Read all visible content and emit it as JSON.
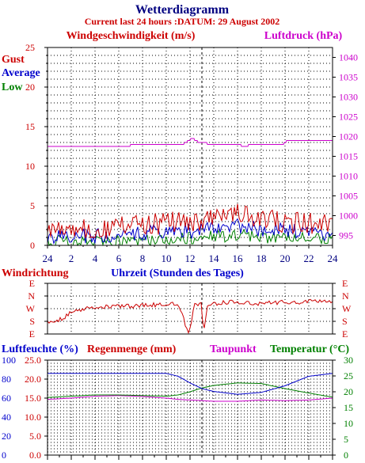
{
  "title": "Wetterdiagramm",
  "subtitle": "Current last 24 hours :DATUM: 29 August 2002",
  "colors": {
    "navy": "#000080",
    "red": "#cc0000",
    "blue": "#0000cc",
    "green": "#008000",
    "magenta": "#cc00cc"
  },
  "chart_data": [
    {
      "type": "line",
      "title": "",
      "ylabel_left": "Windgeschwindigkeit (m/s)",
      "ylabel_right": "Luftdruck (hPa)",
      "xlabel": "Uhrzeit (Stunden des Tages)",
      "x_ticks": [
        "24",
        "2",
        "4",
        "6",
        "8",
        "10",
        "12",
        "14",
        "16",
        "18",
        "20",
        "22",
        "24"
      ],
      "y_left_ticks": [
        "0",
        "5",
        "10",
        "15",
        "20",
        "25"
      ],
      "y_left_range": [
        0,
        25
      ],
      "y_right_ticks": [
        "995",
        "1000",
        "1005",
        "1010",
        "1015",
        "1020",
        "1025",
        "1030",
        "1035",
        "1040"
      ],
      "y_right_range": [
        992.5,
        1042.5
      ],
      "legend": [
        "Gust",
        "Average",
        "Low"
      ],
      "legend_position": "left",
      "grid": true,
      "x": [
        0,
        2,
        4,
        6,
        8,
        10,
        11.5,
        12.2,
        12.8,
        14,
        16,
        16.6,
        17.2,
        18,
        19.8,
        20.2,
        22,
        24
      ],
      "series": [
        {
          "name": "Gust",
          "axis": "left",
          "values": [
            2.0,
            2.3,
            2.0,
            2.3,
            2.5,
            2.8,
            3.3,
            3.0,
            3.2,
            3.6,
            4.0,
            4.1,
            3.8,
            3.2,
            3.0,
            2.9,
            2.7,
            2.6
          ]
        },
        {
          "name": "Average",
          "axis": "left",
          "values": [
            1.2,
            1.3,
            1.1,
            1.2,
            1.5,
            1.7,
            2.0,
            1.8,
            1.9,
            2.1,
            2.4,
            2.5,
            2.3,
            2.0,
            1.9,
            1.8,
            1.6,
            1.6
          ]
        },
        {
          "name": "Low",
          "axis": "left",
          "values": [
            0.5,
            0.6,
            0.4,
            0.5,
            0.7,
            0.8,
            1.0,
            0.9,
            1.0,
            1.1,
            1.3,
            1.3,
            1.2,
            1.0,
            0.9,
            0.9,
            0.8,
            0.8
          ]
        },
        {
          "name": "Luftdruck",
          "axis": "right",
          "values": [
            1017.5,
            1017.5,
            1017.5,
            1017.5,
            1018.0,
            1018.0,
            1018.2,
            1019.5,
            1018.5,
            1018.0,
            1018.0,
            1017.5,
            1018.0,
            1018.0,
            1018.0,
            1019.0,
            1019.0,
            1019.0
          ]
        }
      ]
    },
    {
      "type": "line",
      "title": "Windrichtung",
      "ylabel": "Windrichtung",
      "y_ticks_left": [
        "E",
        "N",
        "W",
        "S",
        "E"
      ],
      "y_ticks_right": [
        "E",
        "N",
        "W",
        "S",
        "E"
      ],
      "x_ticks": [],
      "grid": true,
      "x": [
        0,
        0.5,
        1,
        1.5,
        2,
        2.5,
        3,
        3.5,
        4,
        5,
        6,
        7,
        8,
        9,
        10,
        11,
        11.9,
        12.4,
        12.6,
        13,
        13.1,
        13.5,
        14,
        15,
        16,
        17,
        18,
        19,
        20,
        21,
        22,
        23,
        24
      ],
      "series": [
        {
          "name": "Windrichtung",
          "direction_index": [
            3.0,
            3.1,
            2.9,
            2.6,
            2.3,
            2.1,
            2.0,
            1.9,
            1.9,
            1.8,
            1.8,
            1.8,
            1.7,
            1.7,
            1.6,
            1.6,
            4.0,
            1.6,
            1.6,
            1.6,
            4.0,
            1.6,
            1.6,
            1.5,
            1.5,
            1.6,
            1.6,
            1.5,
            1.5,
            1.5,
            1.4,
            1.4,
            1.5
          ]
        }
      ]
    },
    {
      "type": "line",
      "title": "",
      "ylabel_left_1": "Luftfeuchte (%)",
      "ylabel_left_2": "Regenmenge (mm)",
      "ylabel_right_1": "Taupunkt",
      "ylabel_right_2": "Temperatur (°C)",
      "y_left_humidity_ticks": [
        "0",
        "20",
        "40",
        "60",
        "80",
        "100"
      ],
      "y_left_humidity_range": [
        0,
        100
      ],
      "y_left_rain_ticks": [
        "0.0",
        "5.0",
        "10.0",
        "15.0",
        "20.0",
        "25.0"
      ],
      "y_left_rain_range": [
        0,
        25
      ],
      "y_right_ticks": [
        "0",
        "5",
        "10",
        "15",
        "20",
        "25",
        "30"
      ],
      "y_right_range": [
        0,
        30
      ],
      "legend": [
        "Luftfeuchte (%)",
        "Regenmenge (mm)",
        "Taupunkt",
        "Temperatur (°C)"
      ],
      "grid": true,
      "x": [
        0,
        2,
        4,
        6,
        8,
        10,
        11,
        12,
        13,
        14,
        16,
        18,
        20,
        22,
        24
      ],
      "series": [
        {
          "name": "Luftfeuchte (%)",
          "axis": "left_humidity",
          "values": [
            86,
            86,
            86,
            86,
            86,
            86,
            83,
            76,
            70,
            67,
            64,
            66,
            73,
            83,
            86
          ]
        },
        {
          "name": "Regenmenge (mm)",
          "axis": "left_rain",
          "values": [
            0,
            0,
            0,
            0,
            0,
            0,
            0,
            0,
            0,
            0,
            0,
            0,
            0,
            0,
            0
          ]
        },
        {
          "name": "Taupunkt",
          "axis": "right",
          "values": [
            17.6,
            18.0,
            18.6,
            18.8,
            18.5,
            18.0,
            17.6,
            17.4,
            17.2,
            17.0,
            17.0,
            17.4,
            17.2,
            17.4,
            18.0
          ]
        },
        {
          "name": "Temperatur (°C)",
          "axis": "right",
          "values": [
            18.2,
            18.6,
            19.0,
            19.0,
            18.8,
            18.6,
            19.0,
            20.0,
            21.2,
            22.0,
            22.8,
            22.6,
            21.0,
            19.6,
            18.3
          ]
        }
      ]
    }
  ]
}
